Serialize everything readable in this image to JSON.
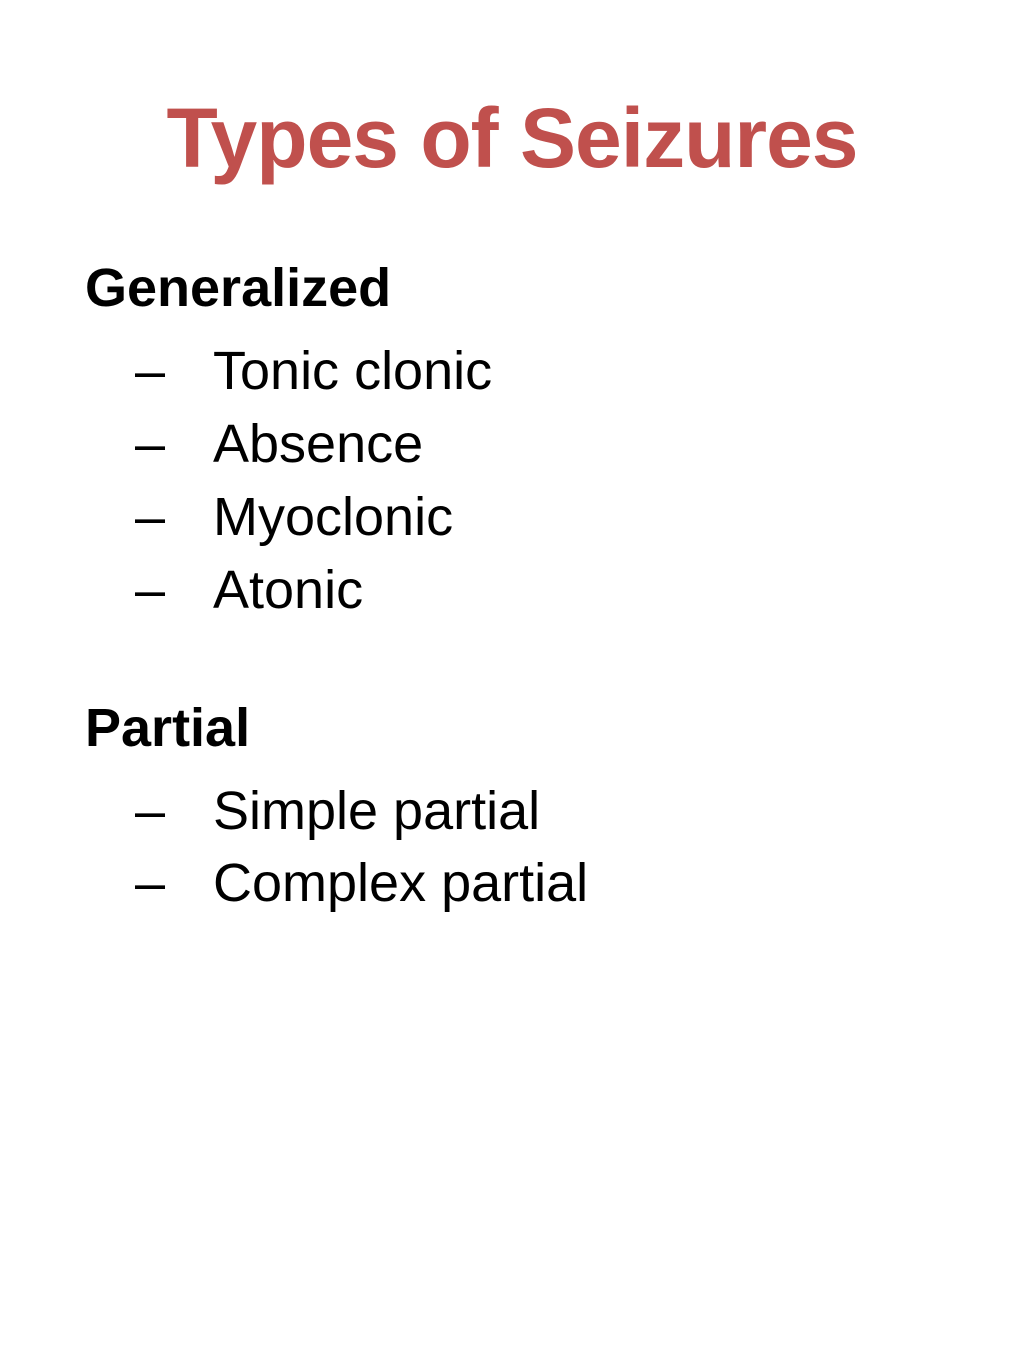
{
  "title": "Types of Seizures",
  "title_color": "#c0504d",
  "title_fontsize": 84,
  "heading_fontsize": 54,
  "item_fontsize": 54,
  "text_color": "#000000",
  "background_color": "#ffffff",
  "dash_char": "–",
  "sections": [
    {
      "heading": "Generalized",
      "items": [
        "Tonic clonic",
        "Absence",
        "Myoclonic",
        "Atonic"
      ]
    },
    {
      "heading": "Partial",
      "items": [
        "Simple partial",
        "Complex partial"
      ]
    }
  ]
}
